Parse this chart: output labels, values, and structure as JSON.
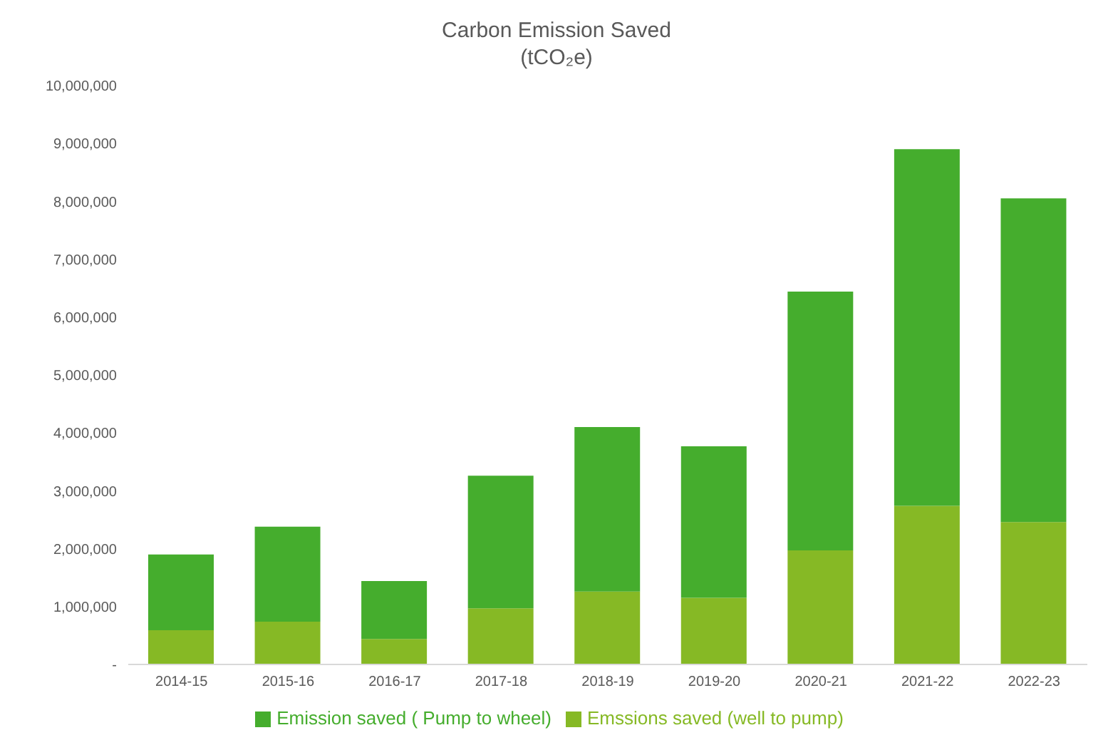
{
  "chart_data": {
    "type": "bar",
    "title": "Carbon Emission Saved",
    "subtitle": "(tCO₂e)",
    "categories": [
      "2014-15",
      "2015-16",
      "2016-17",
      "2017-18",
      "2018-19",
      "2019-20",
      "2020-21",
      "2021-22",
      "2022-23"
    ],
    "stacked": true,
    "series": [
      {
        "name": "Emssions saved (well to pump)",
        "color": "#86b925",
        "values": [
          590000,
          740000,
          440000,
          970000,
          1260000,
          1150000,
          1970000,
          2740000,
          2460000
        ]
      },
      {
        "name": "Emission saved ( Pump to wheel)",
        "color": "#45ad2d",
        "values": [
          1310000,
          1640000,
          1000000,
          2290000,
          2840000,
          2620000,
          4470000,
          6160000,
          5590000
        ]
      }
    ],
    "ylim": [
      0,
      10000000
    ],
    "yticks": [
      {
        "value": 0,
        "label": "-"
      },
      {
        "value": 1000000,
        "label": "1,000,000"
      },
      {
        "value": 2000000,
        "label": "2,000,000"
      },
      {
        "value": 3000000,
        "label": "3,000,000"
      },
      {
        "value": 4000000,
        "label": "4,000,000"
      },
      {
        "value": 5000000,
        "label": "5,000,000"
      },
      {
        "value": 6000000,
        "label": "6,000,000"
      },
      {
        "value": 7000000,
        "label": "7,000,000"
      },
      {
        "value": 8000000,
        "label": "8,000,000"
      },
      {
        "value": 9000000,
        "label": "9,000,000"
      },
      {
        "value": 10000000,
        "label": "10,000,000"
      }
    ],
    "grid": false,
    "legend": "bottom"
  }
}
